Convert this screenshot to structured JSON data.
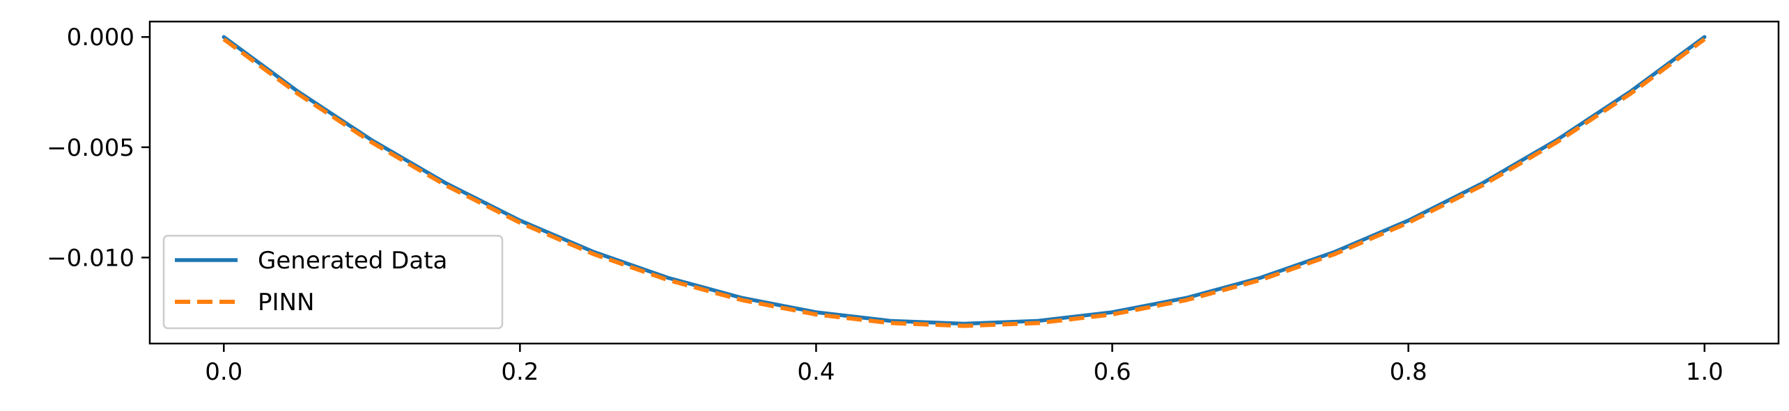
{
  "chart_data": {
    "type": "line",
    "title": "",
    "xlabel": "",
    "ylabel": "",
    "xlim": [
      -0.05,
      1.05
    ],
    "ylim": [
      -0.0139,
      0.0007
    ],
    "x_ticks": [
      0.0,
      0.2,
      0.4,
      0.6,
      0.8,
      1.0
    ],
    "x_tick_labels": [
      "0.0",
      "0.2",
      "0.4",
      "0.6",
      "0.8",
      "1.0"
    ],
    "y_ticks": [
      0.0,
      -0.005,
      -0.01
    ],
    "y_tick_labels": [
      "0.000",
      "−0.005",
      "−0.010"
    ],
    "grid": false,
    "legend_position": "lower-left",
    "series": [
      {
        "name": "Generated Data",
        "color": "#1f77b4",
        "style": "solid",
        "x": [
          0.0,
          0.05,
          0.1,
          0.15,
          0.2,
          0.25,
          0.3,
          0.35,
          0.4,
          0.45,
          0.5,
          0.55,
          0.6,
          0.65,
          0.7,
          0.75,
          0.8,
          0.85,
          0.9,
          0.95,
          1.0
        ],
        "y": [
          0.0,
          -0.00247,
          -0.00468,
          -0.00663,
          -0.00832,
          -0.00975,
          -0.01092,
          -0.01183,
          -0.01248,
          -0.01287,
          -0.013,
          -0.01287,
          -0.01248,
          -0.01183,
          -0.01092,
          -0.00975,
          -0.00832,
          -0.00663,
          -0.00468,
          -0.00247,
          0.0
        ]
      },
      {
        "name": "PINN",
        "color": "#ff7f0e",
        "style": "dashed",
        "x": [
          0.0,
          0.05,
          0.1,
          0.15,
          0.2,
          0.25,
          0.3,
          0.35,
          0.4,
          0.45,
          0.5,
          0.55,
          0.6,
          0.65,
          0.7,
          0.75,
          0.8,
          0.85,
          0.9,
          0.95,
          1.0
        ],
        "y": [
          -0.0001,
          -0.00257,
          -0.00478,
          -0.00673,
          -0.00842,
          -0.00985,
          -0.01102,
          -0.01193,
          -0.01258,
          -0.01297,
          -0.0131,
          -0.01297,
          -0.01258,
          -0.01193,
          -0.01102,
          -0.00985,
          -0.00842,
          -0.00673,
          -0.00478,
          -0.00257,
          -0.0001
        ]
      }
    ]
  }
}
